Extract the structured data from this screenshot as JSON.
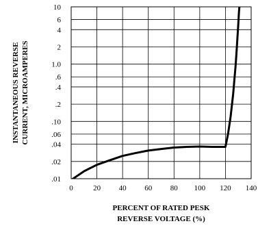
{
  "chart_data": {
    "type": "line",
    "xlabel_lines": [
      "PERCENT OF RATED PESK",
      "REVERSE VOLTAGE (%)"
    ],
    "ylabel_lines": [
      "INSTANTANEOUS REVERSE",
      "CURRENT, MICROAMPERES"
    ],
    "x_scale": "linear",
    "y_scale": "log",
    "xlim": [
      0,
      140
    ],
    "ylim": [
      0.01,
      10
    ],
    "x_ticks": [
      0,
      20,
      40,
      60,
      80,
      100,
      120,
      140
    ],
    "x_tick_labels": [
      "0",
      "20",
      "40",
      "60",
      "80",
      "100",
      "120",
      "140"
    ],
    "y_ticks": [
      0.01,
      0.02,
      0.04,
      0.06,
      0.1,
      0.2,
      0.4,
      0.6,
      1.0,
      2,
      4,
      6,
      10
    ],
    "y_tick_labels": [
      ".01",
      ".02",
      ".04",
      ".06",
      ".10",
      ".2",
      ".4",
      ".6",
      "1.0",
      "2",
      "4",
      "6",
      "10"
    ],
    "grid": true,
    "series": [
      {
        "x": [
          0,
          10,
          20,
          30,
          40,
          50,
          60,
          70,
          80,
          90,
          100,
          110,
          120,
          122,
          124,
          126,
          128,
          129,
          130,
          130.5,
          131
        ],
        "y": [
          0.0095,
          0.0135,
          0.0175,
          0.021,
          0.025,
          0.028,
          0.031,
          0.033,
          0.035,
          0.036,
          0.0365,
          0.036,
          0.036,
          0.06,
          0.12,
          0.3,
          1.0,
          2.2,
          5.0,
          8.0,
          11.0
        ]
      }
    ]
  }
}
